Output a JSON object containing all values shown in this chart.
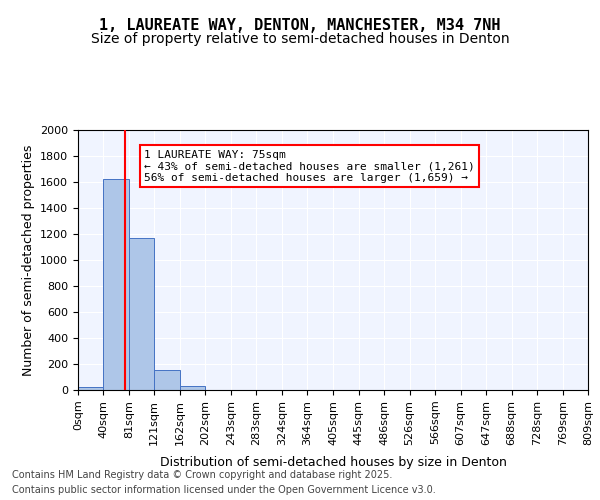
{
  "title_line1": "1, LAUREATE WAY, DENTON, MANCHESTER, M34 7NH",
  "title_line2": "Size of property relative to semi-detached houses in Denton",
  "xlabel": "Distribution of semi-detached houses by size in Denton",
  "ylabel": "Number of semi-detached properties",
  "bins": [
    "0sqm",
    "40sqm",
    "81sqm",
    "121sqm",
    "162sqm",
    "202sqm",
    "243sqm",
    "283sqm",
    "324sqm",
    "364sqm",
    "405sqm",
    "445sqm",
    "486sqm",
    "526sqm",
    "566sqm",
    "607sqm",
    "647sqm",
    "688sqm",
    "728sqm",
    "769sqm",
    "809sqm"
  ],
  "bin_edges": [
    0,
    40,
    81,
    121,
    162,
    202,
    243,
    283,
    324,
    364,
    405,
    445,
    486,
    526,
    566,
    607,
    647,
    688,
    728,
    769,
    809
  ],
  "values": [
    20,
    1620,
    1170,
    155,
    30,
    0,
    0,
    0,
    0,
    0,
    0,
    0,
    0,
    0,
    0,
    0,
    0,
    0,
    0,
    0
  ],
  "bar_color": "#aec6e8",
  "bar_edgecolor": "#4472c4",
  "redline_x": 75,
  "redline_color": "red",
  "ylim": [
    0,
    2000
  ],
  "yticks": [
    0,
    200,
    400,
    600,
    800,
    1000,
    1200,
    1400,
    1600,
    1800,
    2000
  ],
  "annotation_title": "1 LAUREATE WAY: 75sqm",
  "annotation_line1": "← 43% of semi-detached houses are smaller (1,261)",
  "annotation_line2": "56% of semi-detached houses are larger (1,659) →",
  "annotation_box_color": "red",
  "footer_line1": "Contains HM Land Registry data © Crown copyright and database right 2025.",
  "footer_line2": "Contains public sector information licensed under the Open Government Licence v3.0.",
  "background_color": "#f0f4ff",
  "grid_color": "#ffffff",
  "title_fontsize": 11,
  "subtitle_fontsize": 10,
  "axis_label_fontsize": 9,
  "tick_fontsize": 8,
  "annotation_fontsize": 8,
  "footer_fontsize": 7
}
